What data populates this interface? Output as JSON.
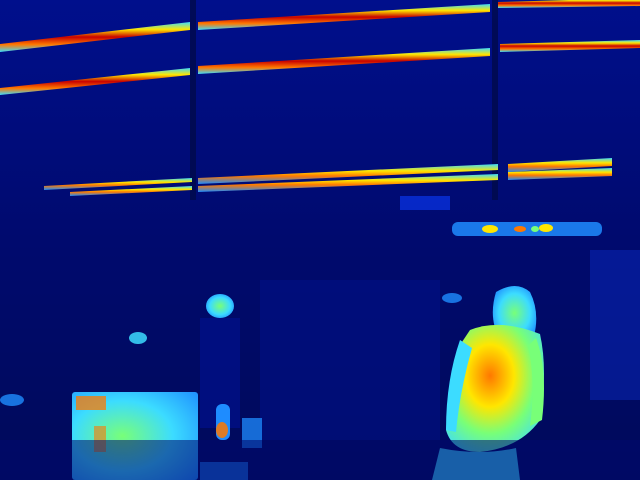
{
  "image": {
    "kind": "thermal-camera-frame",
    "palette": {
      "background_deep": "#000a5a",
      "background": "#000f8c",
      "cool": "#0a3cff",
      "mid_cool": "#1e8cff",
      "cyan": "#3cdcff",
      "green": "#78ff78",
      "yellow": "#ffe600",
      "orange": "#ff7800",
      "hot": "#c80000"
    }
  }
}
